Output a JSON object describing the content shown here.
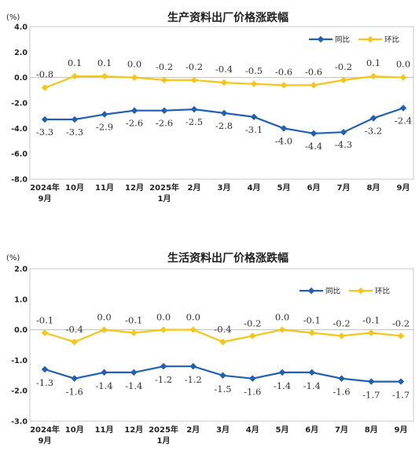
{
  "chart_data": [
    {
      "type": "line",
      "title": "生产资料出厂价格涨跌幅",
      "unit": "(%)",
      "categories": [
        {
          "line1": "2024年",
          "line2": "9月"
        },
        {
          "line1": "10月",
          "line2": ""
        },
        {
          "line1": "11月",
          "line2": ""
        },
        {
          "line1": "12月",
          "line2": ""
        },
        {
          "line1": "2025年",
          "line2": "1月"
        },
        {
          "line1": "2月",
          "line2": ""
        },
        {
          "line1": "3月",
          "line2": ""
        },
        {
          "line1": "4月",
          "line2": ""
        },
        {
          "line1": "5月",
          "line2": ""
        },
        {
          "line1": "6月",
          "line2": ""
        },
        {
          "line1": "7月",
          "line2": ""
        },
        {
          "line1": "8月",
          "line2": ""
        },
        {
          "line1": "9月",
          "line2": ""
        }
      ],
      "ylim": [
        -8.0,
        4.0
      ],
      "yticks": [
        "4.0",
        "2.0",
        "0.0",
        "-2.0",
        "-4.0",
        "-6.0",
        "-8.0"
      ],
      "series": [
        {
          "name": "同比",
          "color": "#1f5fb4",
          "values": [
            -3.3,
            -3.3,
            -2.9,
            -2.6,
            -2.6,
            -2.5,
            -2.8,
            -3.1,
            -4.0,
            -4.4,
            -4.3,
            -3.2,
            -2.4
          ],
          "labels": [
            "-3.3",
            "-3.3",
            "-2.9",
            "-2.6",
            "-2.6",
            "-2.5",
            "-2.8",
            "-3.1",
            "-4.0",
            "-4.4",
            "-4.3",
            "-3.2",
            "-2.4"
          ]
        },
        {
          "name": "环比",
          "color": "#f5c518",
          "values": [
            -0.8,
            0.1,
            0.1,
            0.0,
            -0.2,
            -0.2,
            -0.4,
            -0.5,
            -0.6,
            -0.6,
            -0.2,
            0.1,
            0.0
          ],
          "labels": [
            "-0.8",
            "0.1",
            "0.1",
            "0.0",
            "-0.2",
            "-0.2",
            "-0.4",
            "-0.5",
            "-0.6",
            "-0.6",
            "-0.2",
            "0.1",
            "0.0"
          ]
        }
      ],
      "legend": "top-right"
    },
    {
      "type": "line",
      "title": "生活资料出厂价格涨跌幅",
      "unit": "(%)",
      "categories": [
        {
          "line1": "2024年",
          "line2": "9月"
        },
        {
          "line1": "10月",
          "line2": ""
        },
        {
          "line1": "11月",
          "line2": ""
        },
        {
          "line1": "12月",
          "line2": ""
        },
        {
          "line1": "2025年",
          "line2": "1月"
        },
        {
          "line1": "2月",
          "line2": ""
        },
        {
          "line1": "3月",
          "line2": ""
        },
        {
          "line1": "4月",
          "line2": ""
        },
        {
          "line1": "5月",
          "line2": ""
        },
        {
          "line1": "6月",
          "line2": ""
        },
        {
          "line1": "7月",
          "line2": ""
        },
        {
          "line1": "8月",
          "line2": ""
        },
        {
          "line1": "9月",
          "line2": ""
        }
      ],
      "ylim": [
        -3.0,
        2.0
      ],
      "yticks": [
        "2.0",
        "1.0",
        "0.0",
        "-1.0",
        "-2.0",
        "-3.0"
      ],
      "series": [
        {
          "name": "同比",
          "color": "#1f5fb4",
          "values": [
            -1.3,
            -1.6,
            -1.4,
            -1.4,
            -1.2,
            -1.2,
            -1.5,
            -1.6,
            -1.4,
            -1.4,
            -1.6,
            -1.7,
            -1.7
          ],
          "labels": [
            "-1.3",
            "-1.6",
            "-1.4",
            "-1.4",
            "-1.2",
            "-1.2",
            "-1.5",
            "-1.6",
            "-1.4",
            "-1.4",
            "-1.6",
            "-1.7",
            "-1.7"
          ]
        },
        {
          "name": "环比",
          "color": "#f5c518",
          "values": [
            -0.1,
            -0.4,
            0.0,
            -0.1,
            0.0,
            0.0,
            -0.4,
            -0.2,
            0.0,
            -0.1,
            -0.2,
            -0.1,
            -0.2
          ],
          "labels": [
            "-0.1",
            "-0.4",
            "0.0",
            "-0.1",
            "0.0",
            "0.0",
            "-0.4",
            "-0.2",
            "0.0",
            "-0.1",
            "-0.2",
            "-0.1",
            "-0.2"
          ]
        }
      ],
      "legend": "top-right"
    }
  ]
}
